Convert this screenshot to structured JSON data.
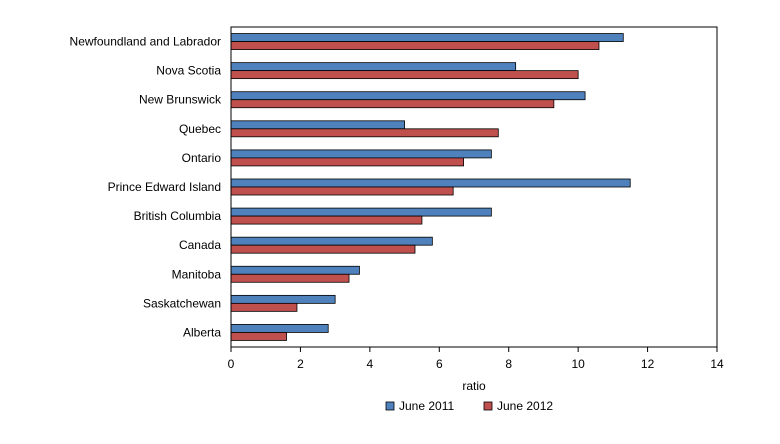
{
  "chart_data": {
    "type": "bar",
    "orientation": "horizontal",
    "categories": [
      "Newfoundland and Labrador",
      "Nova Scotia",
      "New Brunswick",
      "Quebec",
      "Ontario",
      "Prince Edward Island",
      "British Columbia",
      "Canada",
      "Manitoba",
      "Saskatchewan",
      "Alberta"
    ],
    "series": [
      {
        "name": "June 2011",
        "color": "#4f81bd",
        "values": [
          11.3,
          8.2,
          10.2,
          5.0,
          7.5,
          11.5,
          7.5,
          5.8,
          3.7,
          3.0,
          2.8
        ]
      },
      {
        "name": "June 2012",
        "color": "#c0504d",
        "values": [
          10.6,
          10.0,
          9.3,
          7.7,
          6.7,
          6.4,
          5.5,
          5.3,
          3.4,
          1.9,
          1.6
        ]
      }
    ],
    "xlabel": "ratio",
    "ylabel": "",
    "xlim": [
      0,
      14
    ],
    "xticks": [
      0,
      2,
      4,
      6,
      8,
      10,
      12,
      14
    ],
    "grid": false,
    "legend_position": "bottom"
  }
}
